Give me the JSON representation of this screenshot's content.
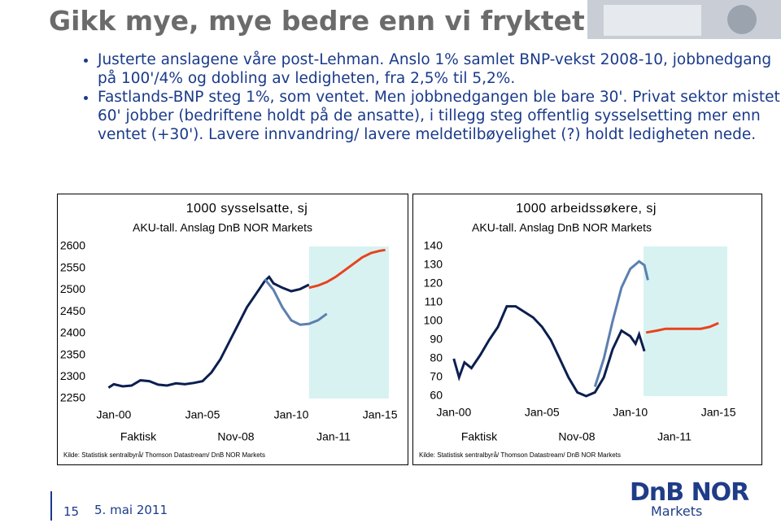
{
  "title": "Gikk mye, mye bedre enn vi fryktet",
  "bullets": [
    "Justerte anslagene våre post-Lehman. Anslo 1% samlet BNP-vekst 2008-10, jobbnedgang på 100'/4% og dobling av ledigheten, fra 2,5% til 5,2%.",
    "Fastlands-BNP steg 1%, som ventet. Men jobbnedgangen ble bare 30'. Privat sektor mistet 60' jobber (bedriftene holdt på de ansatte), i tillegg steg offentlig sysselsetting mer enn ventet (+30'). Lavere innvandring/ lavere meldetilbøyelighet (?) holdt ledigheten nede."
  ],
  "footer": {
    "page": "15",
    "date": "5. mai 2011",
    "logo": "DnB NOR",
    "logo_sub": "Markets"
  },
  "chart_data": [
    {
      "type": "line",
      "title": "1000 sysselsatte, sj",
      "subtitle": "AKU-tall. Anslag DnB NOR Markets",
      "source": "Kilde: Statistisk sentralbyrå/ Thomson Datastream/ DnB NOR Markets",
      "xlim": [
        1999.5,
        2015.5
      ],
      "xticks": [
        {
          "value": 2000,
          "label": "Jan-00"
        },
        {
          "value": 2005,
          "label": "Jan-05"
        },
        {
          "value": 2010,
          "label": "Jan-10"
        },
        {
          "value": 2015,
          "label": "Jan-15"
        }
      ],
      "ylim": [
        2250,
        2600
      ],
      "yticks": [
        2250,
        2300,
        2350,
        2400,
        2450,
        2500,
        2550,
        2600
      ],
      "shaded_xrange": [
        2011,
        2015.5
      ],
      "shade_color": "#d8f2f2",
      "series": [
        {
          "name": "Faktisk",
          "color": "#0b1f4f",
          "x": [
            1999.7,
            2000,
            2000.5,
            2001,
            2001.5,
            2002,
            2002.5,
            2003,
            2003.5,
            2004,
            2004.5,
            2005,
            2005.5,
            2006,
            2006.5,
            2007,
            2007.5,
            2008,
            2008.5,
            2008.75,
            2009,
            2009.5,
            2010,
            2010.5,
            2011
          ],
          "values": [
            2275,
            2283,
            2278,
            2280,
            2292,
            2290,
            2282,
            2280,
            2285,
            2283,
            2286,
            2290,
            2310,
            2340,
            2380,
            2420,
            2460,
            2490,
            2520,
            2530,
            2515,
            2505,
            2497,
            2502,
            2512
          ]
        },
        {
          "name": "Nov-08",
          "color": "#5b7fb0",
          "x": [
            2008.5,
            2009,
            2009.5,
            2010,
            2010.5,
            2011,
            2011.5,
            2012
          ],
          "values": [
            2525,
            2500,
            2460,
            2430,
            2420,
            2422,
            2430,
            2445
          ]
        },
        {
          "name": "Jan-11",
          "color": "#e8431e",
          "x": [
            2011,
            2011.5,
            2012,
            2012.5,
            2013,
            2013.5,
            2014,
            2014.5,
            2015,
            2015.3
          ],
          "values": [
            2505,
            2510,
            2518,
            2530,
            2545,
            2560,
            2575,
            2585,
            2590,
            2592
          ]
        }
      ]
    },
    {
      "type": "line",
      "title": "1000 arbeidssøkere, sj",
      "subtitle": "AKU-tall. Anslag DnB NOR Markets",
      "source": "Kilde: Statistisk sentralbyrå/ Thomson Datastream/ DnB NOR Markets",
      "xlim": [
        1999.5,
        2015.5
      ],
      "xticks": [
        {
          "value": 2000,
          "label": "Jan-00"
        },
        {
          "value": 2005,
          "label": "Jan-05"
        },
        {
          "value": 2010,
          "label": "Jan-10"
        },
        {
          "value": 2015,
          "label": "Jan-15"
        }
      ],
      "ylim": [
        60,
        140
      ],
      "yticks": [
        60,
        70,
        80,
        90,
        100,
        110,
        120,
        130,
        140
      ],
      "shaded_xrange": [
        2010.75,
        2015.5
      ],
      "shade_color": "#d8f2f2",
      "series": [
        {
          "name": "Faktisk",
          "color": "#0b1f4f",
          "x": [
            2000,
            2000.3,
            2000.6,
            2001,
            2001.5,
            2002,
            2002.5,
            2003,
            2003.5,
            2004,
            2004.5,
            2005,
            2005.5,
            2006,
            2006.5,
            2007,
            2007.5,
            2008,
            2008.5,
            2009,
            2009.5,
            2010,
            2010.3,
            2010.5,
            2010.8
          ],
          "values": [
            80,
            70,
            78,
            75,
            82,
            90,
            97,
            108,
            108,
            105,
            102,
            97,
            90,
            80,
            70,
            62,
            60,
            62,
            70,
            85,
            95,
            92,
            88,
            93,
            84
          ]
        },
        {
          "name": "Nov-08",
          "color": "#5b7fb0",
          "x": [
            2008,
            2008.5,
            2009,
            2009.5,
            2010,
            2010.5,
            2010.8,
            2011
          ],
          "values": [
            65,
            80,
            100,
            118,
            128,
            132,
            130,
            122
          ]
        },
        {
          "name": "Jan-11",
          "color": "#e8431e",
          "x": [
            2010.9,
            2011.5,
            2012,
            2013,
            2014,
            2014.5,
            2015
          ],
          "values": [
            94,
            95,
            96,
            96,
            96,
            97,
            99
          ]
        }
      ]
    }
  ]
}
